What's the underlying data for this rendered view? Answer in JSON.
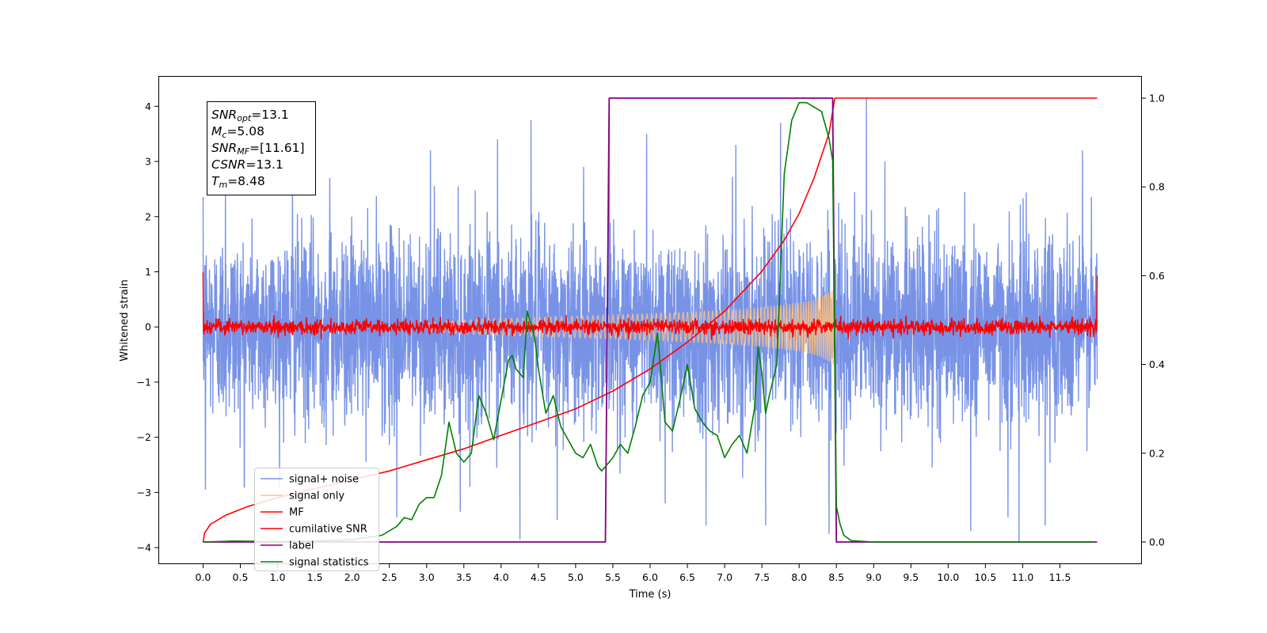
{
  "chart_data": {
    "type": "line",
    "title": "",
    "xlabel": "Time (s)",
    "ylabel": "Whitened strain",
    "xlim": [
      -0.6,
      12.6
    ],
    "ylim": [
      -4.3,
      4.55
    ],
    "ylim_right": [
      -0.05,
      1.05
    ],
    "xticks": [
      0.0,
      0.5,
      1.0,
      1.5,
      2.0,
      2.5,
      3.0,
      3.5,
      4.0,
      4.5,
      5.0,
      5.5,
      6.0,
      6.5,
      7.0,
      7.5,
      8.0,
      8.5,
      9.0,
      9.5,
      10.0,
      10.5,
      11.0,
      11.5
    ],
    "xtick_labels": [
      "0.0",
      "0.5",
      "1.0",
      "1.5",
      "2.0",
      "2.5",
      "3.0",
      "3.5",
      "4.0",
      "4.5",
      "5.0",
      "5.5",
      "6.0",
      "6.5",
      "7.0",
      "7.5",
      "8.0",
      "8.5",
      "9.0",
      "9.5",
      "10.0",
      "10.5",
      "11.0",
      "11.5"
    ],
    "yticks": [
      -4,
      -3,
      -2,
      -1,
      0,
      1,
      2,
      3,
      4
    ],
    "ytick_labels": [
      "−4",
      "−3",
      "−2",
      "−1",
      "0",
      "1",
      "2",
      "3",
      "4"
    ],
    "yticks_right": [
      0.0,
      0.2,
      0.4,
      0.6,
      0.8,
      1.0
    ],
    "ytick_right_labels": [
      "0.0",
      "0.2",
      "0.4",
      "0.6",
      "0.8",
      "1.0"
    ],
    "grid": false,
    "legend_position": "lower-left",
    "legend": [
      {
        "name": "signal+ noise",
        "color": "#7893e6"
      },
      {
        "name": "signal only",
        "color": "#ffc27f"
      },
      {
        "name": "MF",
        "color": "#ff0000"
      },
      {
        "name": "cumilative SNR",
        "color": "#ff0000"
      },
      {
        "name": "label",
        "color": "#800080"
      },
      {
        "name": "signal statistics",
        "color": "#008000"
      }
    ],
    "annotation_lines": [
      {
        "symbol": "SNR",
        "sub": "opt",
        "value": "=13.1"
      },
      {
        "symbol": "M",
        "sub": "c",
        "value": "=5.08"
      },
      {
        "symbol": "SNR",
        "sub": "MF",
        "value": "=[11.61]"
      },
      {
        "symbol": "CSNR",
        "sub": "",
        "value": "=13.1"
      },
      {
        "symbol": "T",
        "sub": "m",
        "value": "=8.48"
      }
    ],
    "series": [
      {
        "name": "signal+ noise",
        "axis": "left",
        "color": "#7893e6",
        "x_range": [
          0.0,
          12.0
        ],
        "std": 0.85,
        "peaks": [
          [
            0.03,
            -2.95
          ],
          [
            0.3,
            2.6
          ],
          [
            0.55,
            -2.9
          ],
          [
            1.2,
            3.0
          ],
          [
            1.7,
            2.7
          ],
          [
            2.6,
            -3.45
          ],
          [
            3.05,
            3.2
          ],
          [
            3.45,
            -3.35
          ],
          [
            3.95,
            3.4
          ],
          [
            4.25,
            -3.85
          ],
          [
            4.4,
            3.75
          ],
          [
            4.75,
            -3.5
          ],
          [
            5.45,
            3.85
          ],
          [
            5.95,
            3.5
          ],
          [
            6.2,
            -3.2
          ],
          [
            6.75,
            -3.6
          ],
          [
            7.15,
            3.3
          ],
          [
            7.55,
            -3.6
          ],
          [
            7.75,
            3.7
          ],
          [
            8.4,
            -3.75
          ],
          [
            8.9,
            4.15
          ],
          [
            9.15,
            3.0
          ],
          [
            10.3,
            -3.7
          ],
          [
            10.8,
            -3.45
          ],
          [
            10.95,
            -3.9
          ],
          [
            11.3,
            -3.6
          ],
          [
            11.8,
            3.2
          ]
        ]
      },
      {
        "name": "signal only",
        "axis": "left",
        "color": "#ffc27f",
        "t_start": 3.0,
        "t_merge": 8.48,
        "amp_start": 0.04,
        "amp_peak": 0.72
      },
      {
        "name": "MF",
        "axis": "left",
        "color": "#ff0000",
        "x_range": [
          0.0,
          12.0
        ],
        "std": 0.07,
        "edge_start": 1.0,
        "edge_end": 0.93
      },
      {
        "name": "cumilative SNR",
        "axis": "right",
        "color": "#ff0000",
        "x": [
          0.0,
          0.02,
          0.1,
          0.3,
          0.6,
          1.0,
          1.5,
          2.0,
          2.5,
          3.0,
          3.5,
          4.0,
          4.5,
          5.0,
          5.5,
          6.0,
          6.5,
          7.0,
          7.5,
          7.8,
          8.0,
          8.2,
          8.4,
          8.48,
          12.0
        ],
        "y": [
          0.0,
          0.02,
          0.04,
          0.06,
          0.08,
          0.1,
          0.12,
          0.14,
          0.16,
          0.185,
          0.21,
          0.24,
          0.27,
          0.3,
          0.34,
          0.39,
          0.45,
          0.52,
          0.61,
          0.68,
          0.74,
          0.82,
          0.92,
          1.0,
          1.0
        ]
      },
      {
        "name": "label",
        "axis": "right",
        "color": "#800080",
        "x": [
          0.0,
          5.4,
          5.45,
          8.45,
          8.5,
          12.0
        ],
        "y": [
          0.0,
          0.0,
          1.0,
          1.0,
          0.0,
          0.0
        ]
      },
      {
        "name": "signal statistics",
        "axis": "right",
        "color": "#008000",
        "x": [
          0.0,
          0.4,
          1.0,
          1.5,
          2.0,
          2.4,
          2.6,
          2.7,
          2.8,
          2.9,
          3.0,
          3.1,
          3.2,
          3.3,
          3.4,
          3.5,
          3.6,
          3.7,
          3.8,
          3.9,
          4.0,
          4.1,
          4.15,
          4.2,
          4.3,
          4.35,
          4.45,
          4.5,
          4.6,
          4.7,
          4.8,
          4.9,
          5.0,
          5.1,
          5.2,
          5.3,
          5.35,
          5.5,
          5.6,
          5.7,
          5.8,
          5.9,
          6.0,
          6.1,
          6.2,
          6.3,
          6.4,
          6.5,
          6.6,
          6.7,
          6.8,
          6.9,
          7.0,
          7.1,
          7.2,
          7.3,
          7.4,
          7.45,
          7.5,
          7.55,
          7.6,
          7.7,
          7.8,
          7.9,
          8.0,
          8.1,
          8.3,
          8.4,
          8.45,
          8.5,
          8.55,
          8.6,
          8.7,
          9.0,
          10.0,
          11.0,
          11.95
        ],
        "y": [
          0.0,
          0.002,
          0.001,
          0.002,
          0.005,
          0.015,
          0.035,
          0.055,
          0.05,
          0.085,
          0.1,
          0.1,
          0.15,
          0.27,
          0.2,
          0.18,
          0.2,
          0.33,
          0.29,
          0.23,
          0.32,
          0.41,
          0.42,
          0.39,
          0.37,
          0.52,
          0.46,
          0.39,
          0.29,
          0.33,
          0.26,
          0.23,
          0.2,
          0.19,
          0.22,
          0.17,
          0.16,
          0.19,
          0.22,
          0.2,
          0.26,
          0.33,
          0.36,
          0.47,
          0.27,
          0.25,
          0.32,
          0.4,
          0.3,
          0.27,
          0.25,
          0.24,
          0.19,
          0.22,
          0.24,
          0.2,
          0.3,
          0.44,
          0.38,
          0.29,
          0.33,
          0.4,
          0.83,
          0.95,
          0.99,
          0.99,
          0.97,
          0.91,
          0.86,
          0.08,
          0.04,
          0.015,
          0.003,
          0.0,
          0.0,
          0.0,
          0.0
        ]
      }
    ]
  }
}
